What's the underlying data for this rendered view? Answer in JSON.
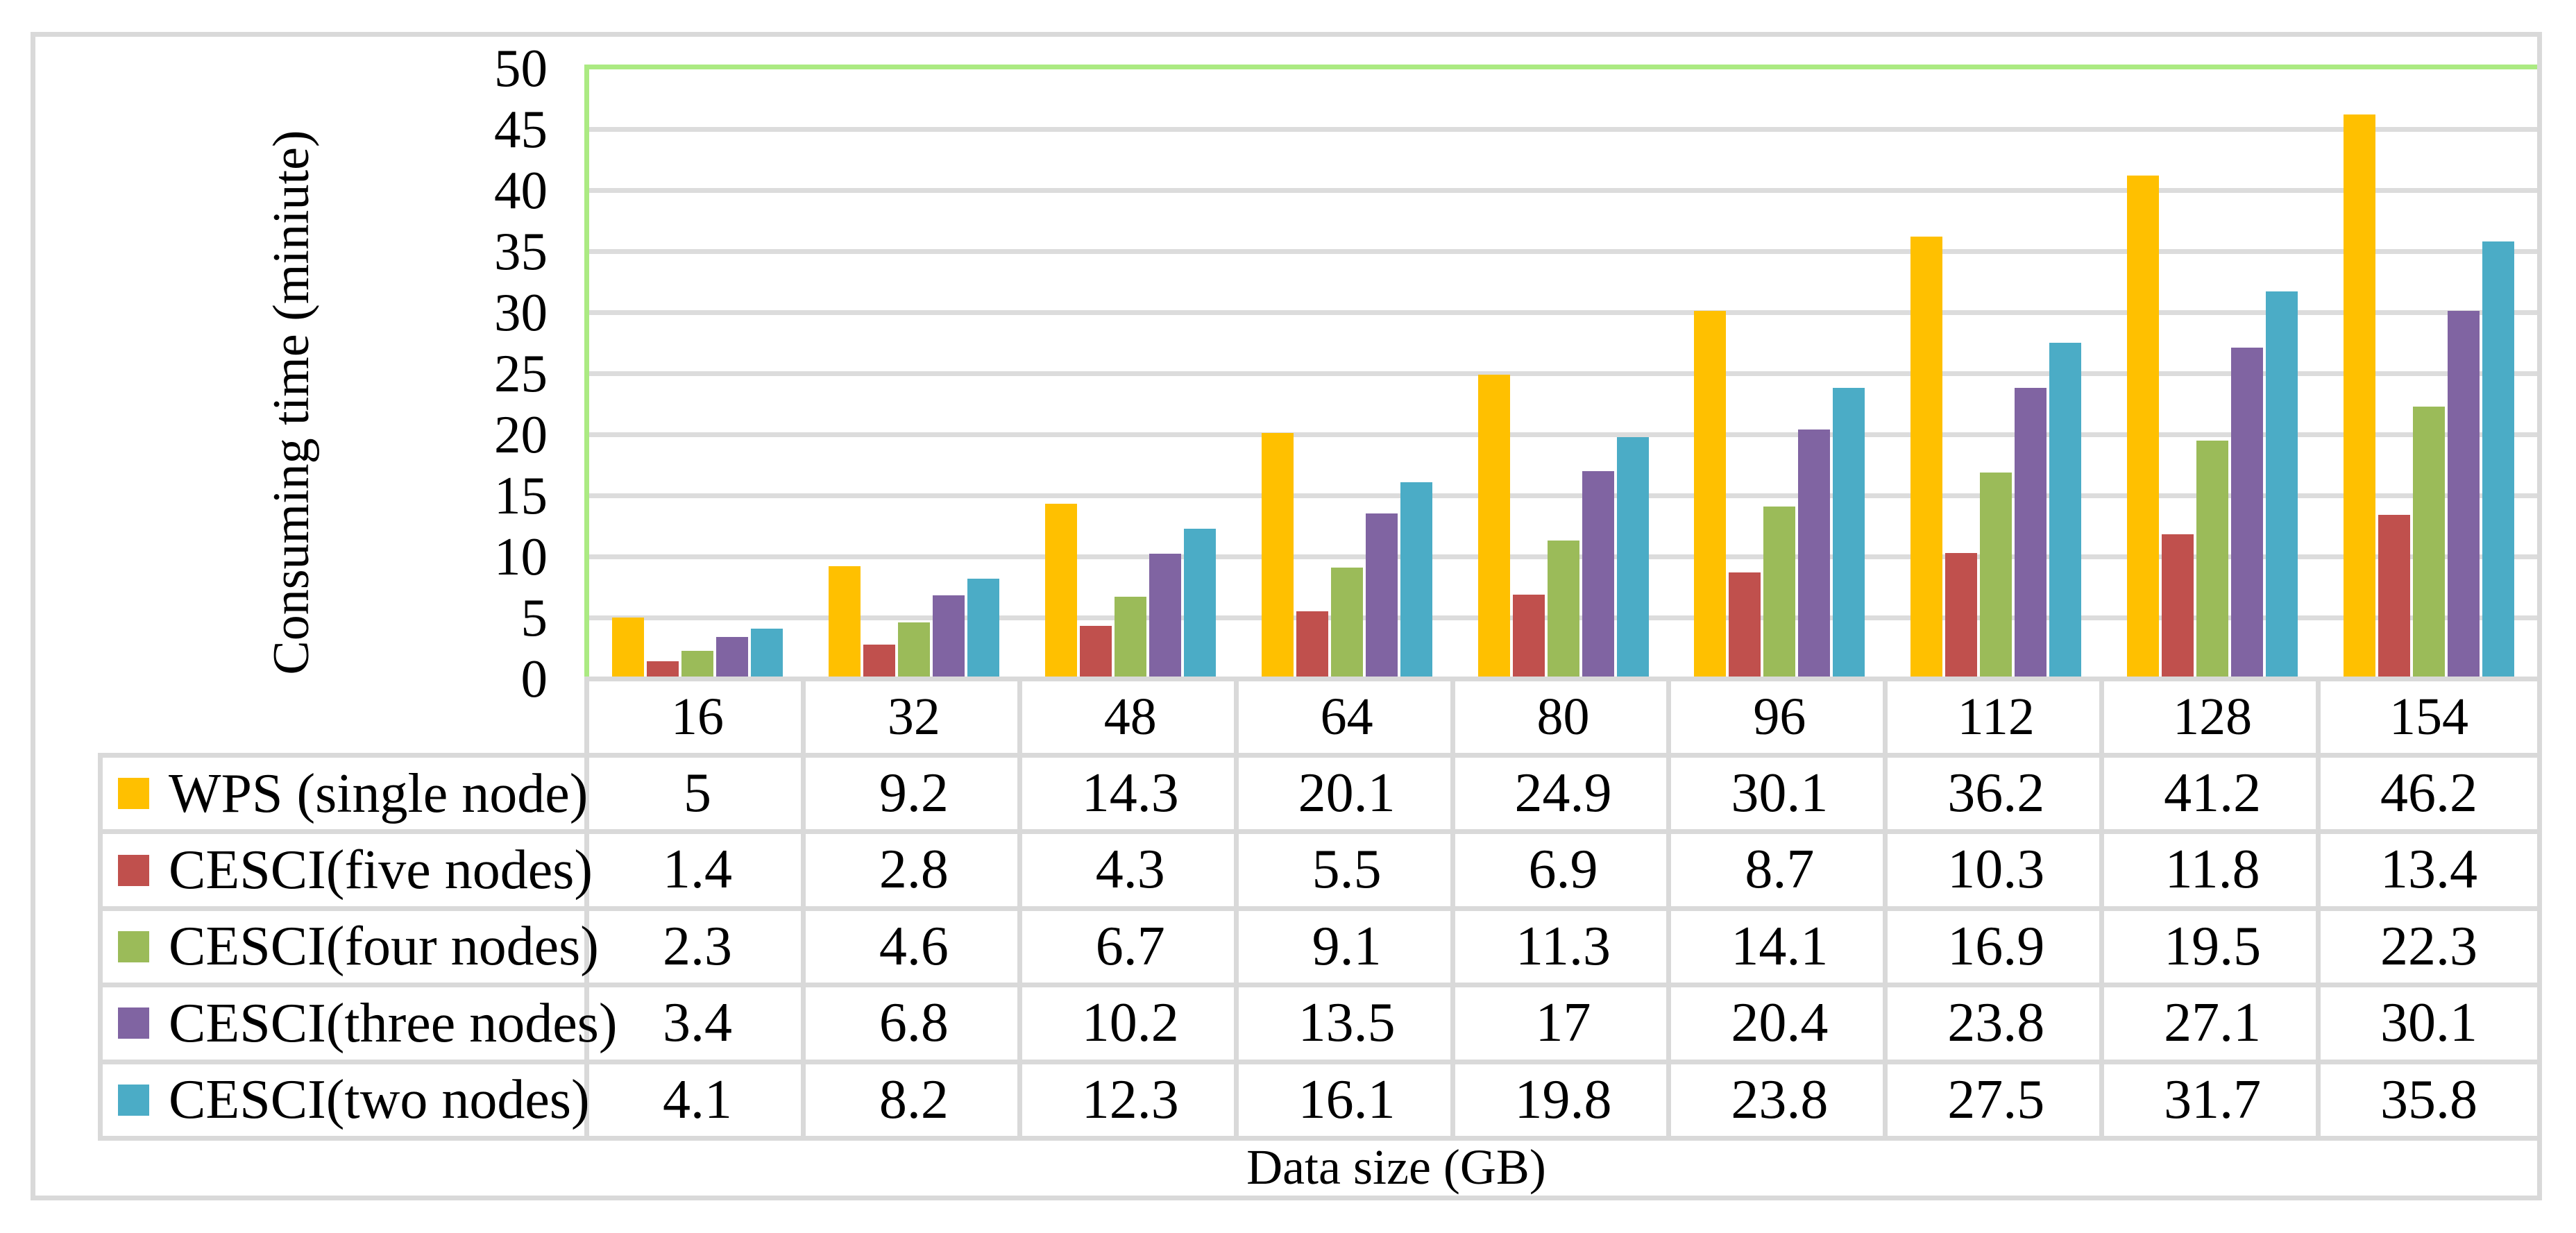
{
  "chart_data": {
    "type": "bar",
    "title": "",
    "xlabel": "Data size (GB)",
    "ylabel": "Consuming time (miniute)",
    "categories": [
      "16",
      "32",
      "48",
      "64",
      "80",
      "96",
      "112",
      "128",
      "154"
    ],
    "series": [
      {
        "name": "WPS (single node)",
        "color": "#FFC000",
        "values": [
          5,
          9.2,
          14.3,
          20.1,
          24.9,
          30.1,
          36.2,
          41.2,
          46.2
        ]
      },
      {
        "name": "CESCI(five nodes)",
        "color": "#C0504D",
        "values": [
          1.4,
          2.8,
          4.3,
          5.5,
          6.9,
          8.7,
          10.3,
          11.8,
          13.4
        ]
      },
      {
        "name": "CESCI(four nodes)",
        "color": "#9BBB59",
        "values": [
          2.3,
          4.6,
          6.7,
          9.1,
          11.3,
          14.1,
          16.9,
          19.5,
          22.3
        ]
      },
      {
        "name": "CESCI(three nodes)",
        "color": "#8064A2",
        "values": [
          3.4,
          6.8,
          10.2,
          13.5,
          17,
          20.4,
          23.8,
          27.1,
          30.1
        ]
      },
      {
        "name": "CESCI(two nodes)",
        "color": "#4BACC6",
        "values": [
          4.1,
          8.2,
          12.3,
          16.1,
          19.8,
          23.8,
          27.5,
          31.7,
          35.8
        ]
      }
    ],
    "y_ticks": [
      0,
      5,
      10,
      15,
      20,
      25,
      30,
      35,
      40,
      45,
      50
    ],
    "ylim": [
      0,
      50
    ],
    "grid": true,
    "legend_position": "table-left-column",
    "colors": {
      "plot_border_green": "#ABEA82",
      "gridline_gray": "#DCDCDC",
      "table_border_gray": "#D9D9D9",
      "text": "#000000",
      "background": "#FFFFFF"
    }
  }
}
